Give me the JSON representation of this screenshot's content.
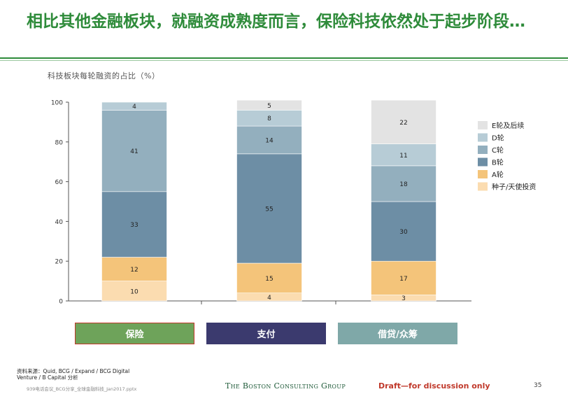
{
  "title": "相比其他金融板块，就融资成熟度而言，保险科技依然处于起步阶段…",
  "chart_data": {
    "type": "bar",
    "stacked": true,
    "title": "科技板块每轮融资的占比（%）",
    "ylim": [
      0,
      100
    ],
    "yticks": [
      "0",
      "20",
      "40",
      "60",
      "80",
      "100"
    ],
    "categories": [
      "保险",
      "支付",
      "借贷/众筹"
    ],
    "series": [
      {
        "name": "种子/天使投资",
        "color": "#fbdcb0",
        "values": [
          10,
          4,
          3
        ]
      },
      {
        "name": "A轮",
        "color": "#f4c47a",
        "values": [
          12,
          15,
          17
        ]
      },
      {
        "name": "B轮",
        "color": "#6d8ea5",
        "values": [
          33,
          55,
          30
        ]
      },
      {
        "name": "C轮",
        "color": "#93afbe",
        "values": [
          41,
          14,
          18
        ]
      },
      {
        "name": "D轮",
        "color": "#b7ccd6",
        "values": [
          4,
          8,
          11
        ]
      },
      {
        "name": "E轮及后续",
        "color": "#e3e3e3",
        "values": [
          0,
          5,
          22
        ]
      }
    ],
    "legend_position": "right",
    "grid": false
  },
  "buttons": [
    {
      "label": "保险",
      "color": "#6ea35a"
    },
    {
      "label": "支付",
      "color": "#3b3a6e"
    },
    {
      "label": "借贷/众筹",
      "color": "#7fa8a8"
    }
  ],
  "footer": {
    "source_line1": "资料来源：Quid, BCG  / Expand / BCG Digital",
    "source_line2": "Venture / B Capital 分析",
    "filename": "939电话会议_BCG分享_全球金融科技_Jan2017.pptx",
    "logo": "The Boston Consulting Group",
    "draft": "Draft—for discussion only",
    "page": "35"
  }
}
